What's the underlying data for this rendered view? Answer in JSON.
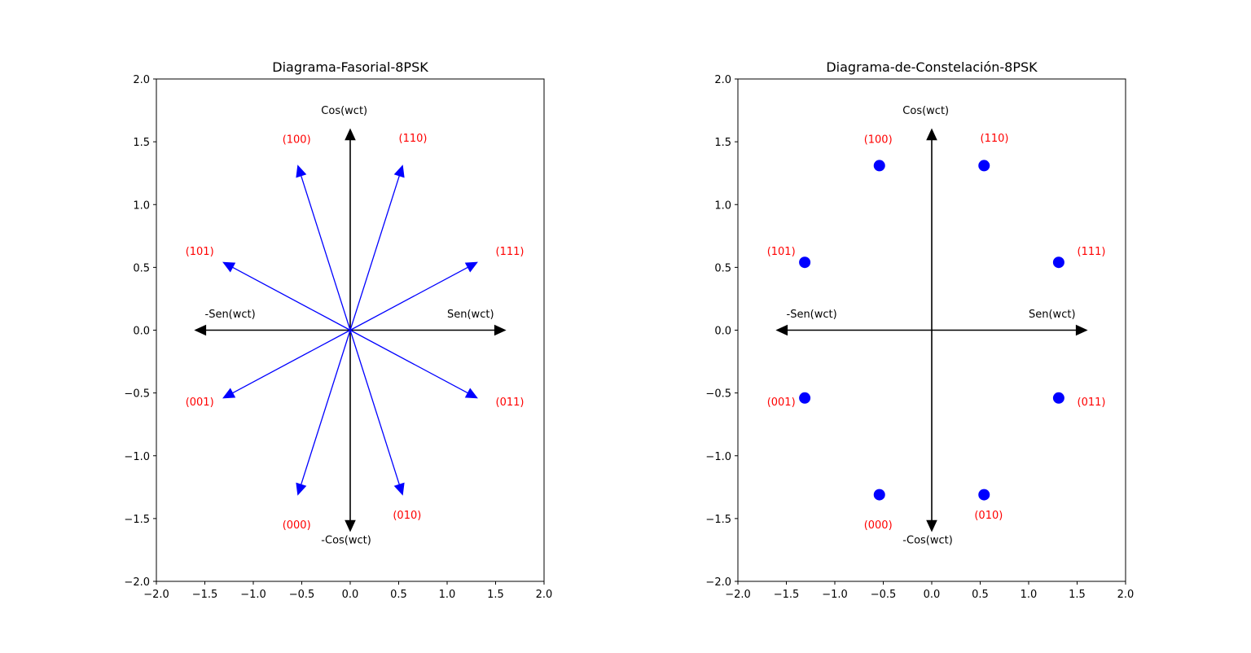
{
  "chart_data": [
    {
      "type": "phasor",
      "title": "Diagrama-Fasorial-8PSK",
      "xlim": [
        -2.0,
        2.0
      ],
      "ylim": [
        -2.0,
        2.0
      ],
      "xticks": [
        "−2.0",
        "−1.5",
        "−1.0",
        "−0.5",
        "0.0",
        "0.5",
        "1.0",
        "1.5",
        "2.0"
      ],
      "yticks": [
        "−2.0",
        "−1.5",
        "−1.0",
        "−0.5",
        "0.0",
        "0.5",
        "1.0",
        "1.5",
        "2.0"
      ],
      "axes_arrows": [
        {
          "x": 0,
          "y": 1.6,
          "label": "Cos(wct)",
          "lx": -0.3,
          "ly": 1.72
        },
        {
          "x": 0,
          "y": -1.6,
          "label": "-Cos(wct)",
          "lx": -0.3,
          "ly": -1.7
        },
        {
          "x": 1.6,
          "y": 0,
          "label": "Sen(wct)",
          "lx": 1.0,
          "ly": 0.1
        },
        {
          "x": -1.6,
          "y": 0,
          "label": "-Sen(wct)",
          "lx": -1.5,
          "ly": 0.1
        }
      ],
      "points": [
        {
          "code": "(110)",
          "x": 0.54,
          "y": 1.31,
          "lx": 0.5,
          "ly": 1.5
        },
        {
          "code": "(100)",
          "x": -0.54,
          "y": 1.31,
          "lx": -0.7,
          "ly": 1.49
        },
        {
          "code": "(111)",
          "x": 1.31,
          "y": 0.54,
          "lx": 1.5,
          "ly": 0.6
        },
        {
          "code": "(101)",
          "x": -1.31,
          "y": 0.54,
          "lx": -1.7,
          "ly": 0.6
        },
        {
          "code": "(011)",
          "x": 1.31,
          "y": -0.54,
          "lx": 1.5,
          "ly": -0.6
        },
        {
          "code": "(001)",
          "x": -1.31,
          "y": -0.54,
          "lx": -1.7,
          "ly": -0.6
        },
        {
          "code": "(010)",
          "x": 0.54,
          "y": -1.31,
          "lx": 0.44,
          "ly": -1.5
        },
        {
          "code": "(000)",
          "x": -0.54,
          "y": -1.31,
          "lx": -0.7,
          "ly": -1.58
        }
      ],
      "colors": {
        "vector": "#0000ff",
        "axes": "#000000",
        "label": "#ff0000"
      }
    },
    {
      "type": "scatter",
      "title": "Diagrama-de-Constelación-8PSK",
      "xlim": [
        -2.0,
        2.0
      ],
      "ylim": [
        -2.0,
        2.0
      ],
      "xticks": [
        "−2.0",
        "−1.5",
        "−1.0",
        "−0.5",
        "0.0",
        "0.5",
        "1.0",
        "1.5",
        "2.0"
      ],
      "yticks": [
        "−2.0",
        "−1.5",
        "−1.0",
        "−0.5",
        "0.0",
        "0.5",
        "1.0",
        "1.5",
        "2.0"
      ],
      "axes_arrows": [
        {
          "x": 0,
          "y": 1.6,
          "label": "Cos(wct)",
          "lx": -0.3,
          "ly": 1.72
        },
        {
          "x": 0,
          "y": -1.6,
          "label": "-Cos(wct)",
          "lx": -0.3,
          "ly": -1.7
        },
        {
          "x": 1.6,
          "y": 0,
          "label": "Sen(wct)",
          "lx": 1.0,
          "ly": 0.1
        },
        {
          "x": -1.6,
          "y": 0,
          "label": "-Sen(wct)",
          "lx": -1.5,
          "ly": 0.1
        }
      ],
      "points": [
        {
          "code": "(110)",
          "x": 0.54,
          "y": 1.31,
          "lx": 0.5,
          "ly": 1.5
        },
        {
          "code": "(100)",
          "x": -0.54,
          "y": 1.31,
          "lx": -0.7,
          "ly": 1.49
        },
        {
          "code": "(111)",
          "x": 1.31,
          "y": 0.54,
          "lx": 1.5,
          "ly": 0.6
        },
        {
          "code": "(101)",
          "x": -1.31,
          "y": 0.54,
          "lx": -1.7,
          "ly": 0.6
        },
        {
          "code": "(011)",
          "x": 1.31,
          "y": -0.54,
          "lx": 1.5,
          "ly": -0.6
        },
        {
          "code": "(001)",
          "x": -1.31,
          "y": -0.54,
          "lx": -1.7,
          "ly": -0.6
        },
        {
          "code": "(010)",
          "x": 0.54,
          "y": -1.31,
          "lx": 0.44,
          "ly": -1.5
        },
        {
          "code": "(000)",
          "x": -0.54,
          "y": -1.31,
          "lx": -0.7,
          "ly": -1.58
        }
      ],
      "colors": {
        "marker": "#0000ff",
        "axes": "#000000",
        "label": "#ff0000"
      }
    }
  ]
}
